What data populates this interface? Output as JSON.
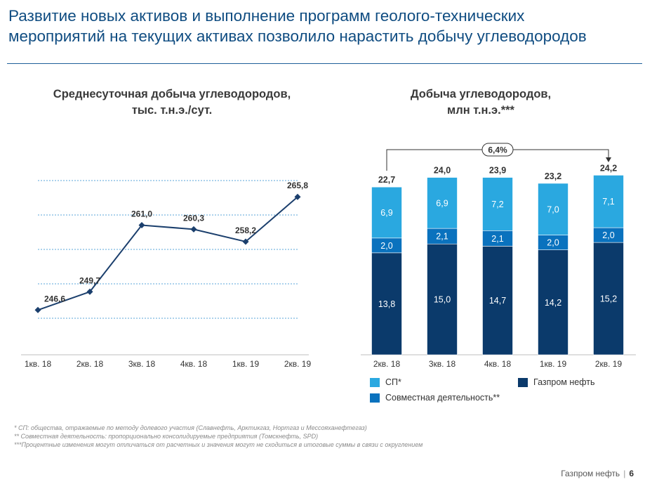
{
  "slide": {
    "title_line1": "Развитие новых активов и выполнение программ геолого-технических",
    "title_line2": "мероприятий на текущих активах позволило нарастить добычу углеводородов",
    "footnote1": "* СП: общества, отражаемые по методу долевого участия (Славнефть, Арктикгаз, Нортгаз и Мессояханефтегаз)",
    "footnote2": "** Совместная деятельность: пропорционально консолидируемые предприятия (Томскнефть, SPD)",
    "footnote3": "***Процентные изменения могут отличаться от расчетных и значения могут не сходиться в итоговые суммы в связи с округлением",
    "footer_brand": "Газпром нефть",
    "footer_separator": "|",
    "page_number": "6"
  },
  "colors": {
    "title": "#0f4c81",
    "line": "#1b3f6d",
    "grid": "#5aa5d8",
    "sp": "#2aa8e0",
    "joint": "#0a72be",
    "gpn": "#0b3a6b"
  },
  "chart_data": [
    {
      "type": "line",
      "title_line1": "Среднесуточная добыча углеводородов,",
      "title_line2": "тыс. т.н.э./сут.",
      "categories": [
        "1кв. 18",
        "2кв. 18",
        "3кв. 18",
        "4кв. 18",
        "1кв. 19",
        "2кв. 19"
      ],
      "values": [
        246.6,
        249.7,
        261.0,
        260.3,
        258.2,
        265.8
      ],
      "labels": [
        "246,6",
        "249,7",
        "261,0",
        "260,3",
        "258,2",
        "265,8"
      ],
      "ylim": [
        239,
        270
      ],
      "grid": true
    },
    {
      "type": "bar",
      "stacked": true,
      "title_line1": "Добыча углеводородов,",
      "title_line2": "млн т.н.э.***",
      "categories": [
        "2кв. 18",
        "3кв. 18",
        "4кв. 18",
        "1кв. 19",
        "2кв. 19"
      ],
      "series": [
        {
          "name": "Газпром нефть",
          "values": [
            13.8,
            15.0,
            14.7,
            14.2,
            15.2
          ],
          "labels": [
            "13,8",
            "15,0",
            "14,7",
            "14,2",
            "15,2"
          ]
        },
        {
          "name": "Совместная деятельность**",
          "values": [
            2.0,
            2.1,
            2.1,
            2.0,
            2.0
          ],
          "labels": [
            "2,0",
            "2,1",
            "2,1",
            "2,0",
            "2,0"
          ]
        },
        {
          "name": "СП*",
          "values": [
            6.9,
            6.9,
            7.2,
            7.0,
            7.1
          ],
          "labels": [
            "6,9",
            "6,9",
            "7,2",
            "7,0",
            "7,1"
          ]
        }
      ],
      "totals": [
        "22,7",
        "24,0",
        "23,9",
        "23,2",
        "24,2"
      ],
      "change_label": "6,4%",
      "ylim": [
        0,
        27
      ],
      "legend_position": "bottom"
    }
  ]
}
